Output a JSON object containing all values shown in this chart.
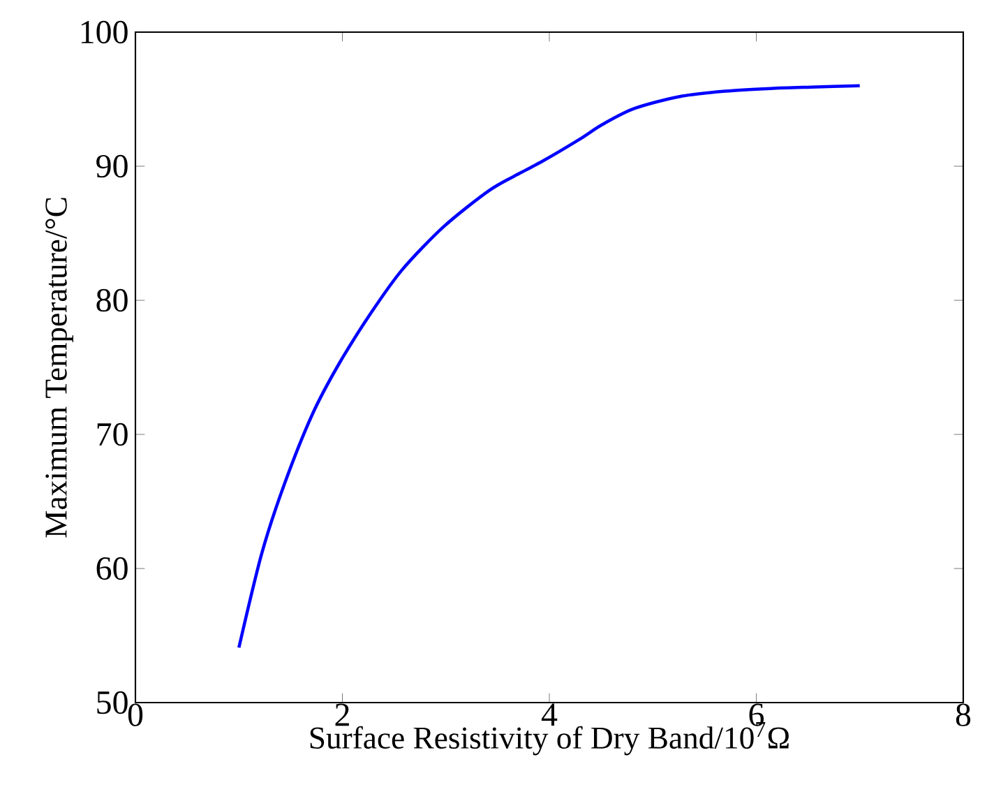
{
  "chart_data": {
    "type": "line",
    "xlabel": "Surface Resistivity of Dry Band/10$^{7}$Ω",
    "ylabel": "Maximum Temperature/°C",
    "x": [
      1.0,
      1.22,
      1.44,
      1.71,
      1.97,
      2.28,
      2.58,
      2.98,
      3.42,
      3.72,
      3.94,
      4.29,
      4.51,
      4.82,
      5.26,
      5.7,
      6.14,
      6.53,
      7.0
    ],
    "series": [
      {
        "color": "#0000ff",
        "values": [
          54.1,
          61.1,
          66.3,
          71.5,
          75.3,
          79.1,
          82.3,
          85.5,
          88.2,
          89.5,
          90.4,
          92.0,
          93.1,
          94.3,
          95.2,
          95.6,
          95.8,
          95.9,
          96.0
        ]
      }
    ],
    "xlim": [
      0,
      8
    ],
    "ylim": [
      50,
      100
    ],
    "xticks": [
      0,
      2,
      4,
      6,
      8
    ],
    "yticks": [
      50,
      60,
      70,
      80,
      90,
      100
    ],
    "grid": false,
    "marker": "none",
    "line_style": "solid"
  }
}
